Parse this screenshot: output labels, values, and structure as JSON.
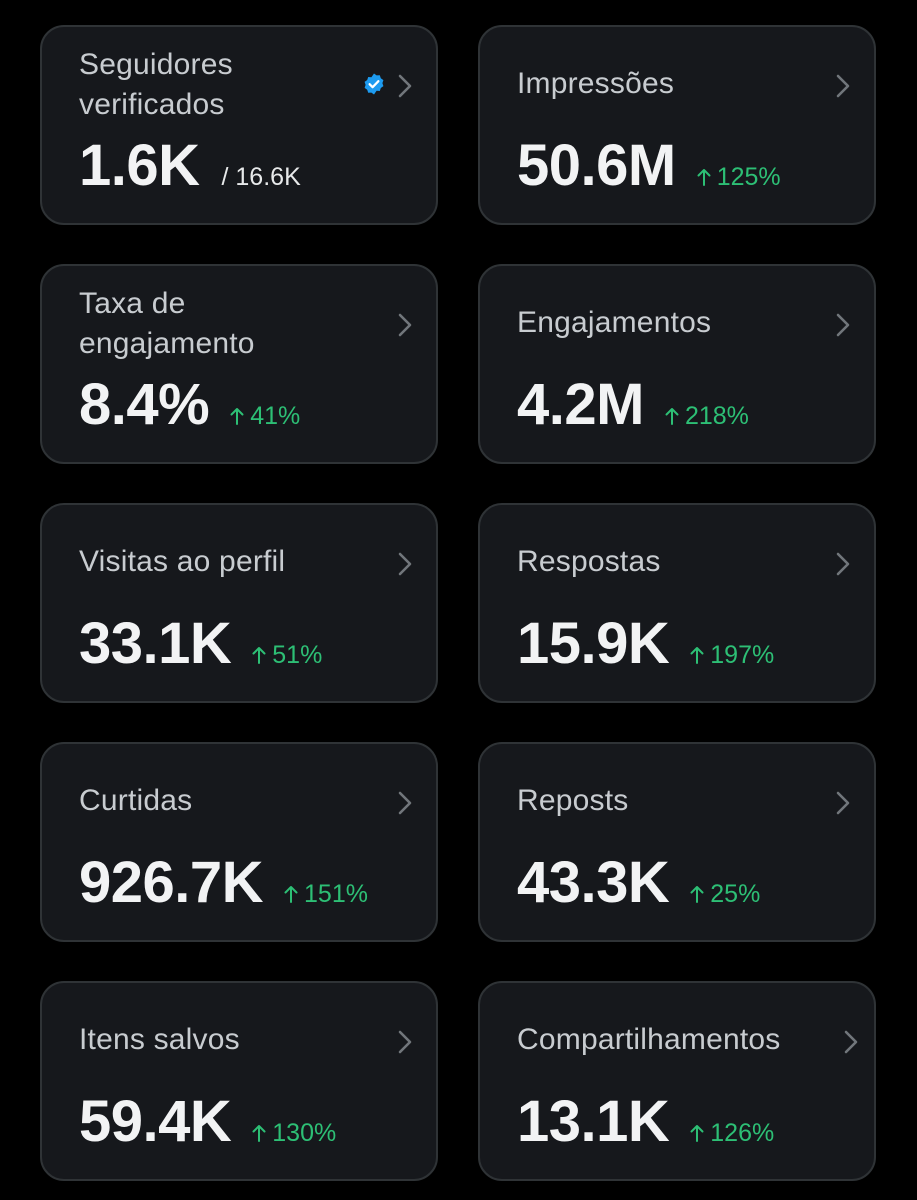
{
  "cards": [
    {
      "title": "Seguidores verificados",
      "value": "1.6K",
      "sub": "/ 16.6K",
      "verified_badge": "verified-check-icon",
      "badge_color": "#1d9bf0"
    },
    {
      "title": "Impressões",
      "value": "50.6M",
      "change": "125%"
    },
    {
      "title": "Taxa de engajamento",
      "value": "8.4%",
      "change": "41%"
    },
    {
      "title": "Engajamentos",
      "value": "4.2M",
      "change": "218%"
    },
    {
      "title": "Visitas ao perfil",
      "value": "33.1K",
      "change": "51%"
    },
    {
      "title": "Respostas",
      "value": "15.9K",
      "change": "197%"
    },
    {
      "title": "Curtidas",
      "value": "926.7K",
      "change": "151%"
    },
    {
      "title": "Reposts",
      "value": "43.3K",
      "change": "25%"
    },
    {
      "title": "Itens salvos",
      "value": "59.4K",
      "change": "130%"
    },
    {
      "title": "Compartilhamentos",
      "value": "13.1K",
      "change": "126%"
    }
  ],
  "colors": {
    "background": "#000000",
    "card": "#16181c",
    "border": "#2f3336",
    "positive": "#2dbf75",
    "title": "#c8ccd0",
    "chevron": "#71767b"
  }
}
